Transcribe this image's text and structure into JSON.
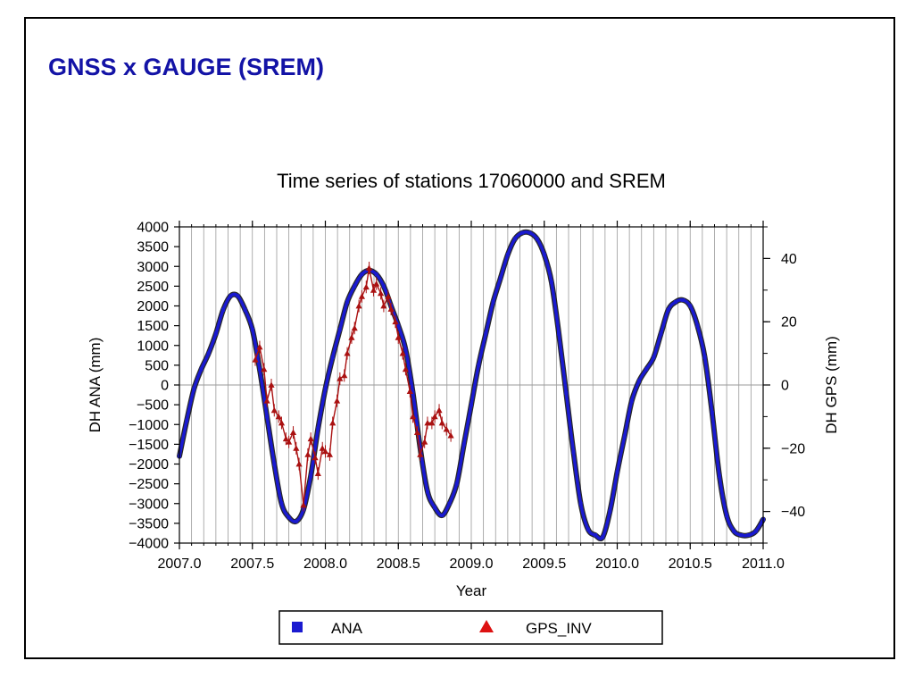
{
  "slide": {
    "title": "GNSS x GAUGE (SREM)"
  },
  "chart_data": {
    "type": "line",
    "title": "Time series of stations 17060000 and SREM",
    "xlabel": "Year",
    "ylabel_left": "DH ANA (mm)",
    "ylabel_right": "DH GPS (mm)",
    "xlim": [
      2007.0,
      2011.0
    ],
    "ylim_left": [
      -4000,
      4000
    ],
    "ylim_right": [
      -50,
      50
    ],
    "x_ticks": [
      "2007.0",
      "2007.5",
      "2008.0",
      "2008.5",
      "2009.0",
      "2009.5",
      "2010.0",
      "2010.5",
      "2011.0"
    ],
    "y_left_ticks": [
      "4000",
      "3500",
      "3000",
      "2500",
      "2000",
      "1500",
      "1000",
      "500",
      "0",
      "−500",
      "−1000",
      "−1500",
      "−2000",
      "−2500",
      "−3000",
      "−3500",
      "−4000"
    ],
    "y_right_ticks": [
      "40",
      "20",
      "0",
      "−20",
      "−40"
    ],
    "grid": {
      "vertical": true,
      "zero_line": true
    },
    "legend_position": "bottom",
    "series": [
      {
        "name": "ANA",
        "axis": "left",
        "color": "#1a1ad0",
        "marker": "square",
        "x": [
          2007.0,
          2007.05,
          2007.1,
          2007.15,
          2007.2,
          2007.25,
          2007.3,
          2007.35,
          2007.4,
          2007.45,
          2007.5,
          2007.55,
          2007.6,
          2007.65,
          2007.7,
          2007.75,
          2007.8,
          2007.85,
          2007.9,
          2007.95,
          2008.0,
          2008.05,
          2008.1,
          2008.15,
          2008.2,
          2008.25,
          2008.3,
          2008.35,
          2008.4,
          2008.45,
          2008.5,
          2008.55,
          2008.6,
          2008.65,
          2008.7,
          2008.75,
          2008.8,
          2008.85,
          2008.9,
          2008.95,
          2009.0,
          2009.05,
          2009.1,
          2009.15,
          2009.2,
          2009.25,
          2009.3,
          2009.35,
          2009.4,
          2009.45,
          2009.5,
          2009.55,
          2009.6,
          2009.65,
          2009.7,
          2009.75,
          2009.8,
          2009.85,
          2009.9,
          2009.95,
          2010.0,
          2010.05,
          2010.1,
          2010.15,
          2010.2,
          2010.25,
          2010.3,
          2010.35,
          2010.4,
          2010.45,
          2010.5,
          2010.55,
          2010.6,
          2010.65,
          2010.7,
          2010.75,
          2010.8,
          2010.85,
          2010.9,
          2010.95,
          2011.0
        ],
        "y": [
          -1800,
          -900,
          -100,
          400,
          800,
          1300,
          1900,
          2250,
          2250,
          1900,
          1400,
          400,
          -800,
          -2000,
          -3000,
          -3350,
          -3450,
          -3150,
          -2300,
          -1100,
          -100,
          700,
          1400,
          2100,
          2500,
          2800,
          2900,
          2800,
          2500,
          2000,
          1500,
          900,
          -200,
          -1600,
          -2700,
          -3100,
          -3300,
          -3000,
          -2500,
          -1500,
          -500,
          500,
          1300,
          2100,
          2700,
          3300,
          3700,
          3850,
          3850,
          3700,
          3300,
          2600,
          1300,
          -200,
          -1700,
          -3000,
          -3650,
          -3800,
          -3850,
          -3200,
          -2200,
          -1300,
          -400,
          100,
          400,
          700,
          1300,
          1900,
          2100,
          2150,
          2000,
          1500,
          700,
          -700,
          -2300,
          -3300,
          -3700,
          -3800,
          -3800,
          -3700,
          -3400
        ]
      },
      {
        "name": "GPS_INV",
        "axis": "right",
        "color": "#aa1111",
        "marker": "triangle",
        "x": [
          2007.52,
          2007.55,
          2007.58,
          2007.6,
          2007.63,
          2007.65,
          2007.68,
          2007.7,
          2007.73,
          2007.75,
          2007.78,
          2007.8,
          2007.82,
          2007.85,
          2007.88,
          2007.9,
          2007.93,
          2007.95,
          2007.98,
          2008.0,
          2008.03,
          2008.05,
          2008.08,
          2008.1,
          2008.13,
          2008.15,
          2008.18,
          2008.2,
          2008.23,
          2008.25,
          2008.28,
          2008.3,
          2008.33,
          2008.35,
          2008.38,
          2008.4,
          2008.43,
          2008.45,
          2008.48,
          2008.5,
          2008.53,
          2008.55,
          2008.58,
          2008.6,
          2008.63,
          2008.65,
          2008.68,
          2008.7,
          2008.73,
          2008.75,
          2008.78,
          2008.8,
          2008.83,
          2008.86
        ],
        "y": [
          8,
          12,
          5,
          -5,
          0,
          -8,
          -10,
          -12,
          -17,
          -18,
          -15,
          -20,
          -25,
          -38,
          -22,
          -17,
          -23,
          -28,
          -20,
          -21,
          -22,
          -12,
          -5,
          2,
          3,
          10,
          15,
          18,
          25,
          28,
          31,
          37,
          30,
          32,
          29,
          25,
          28,
          24,
          20,
          15,
          10,
          5,
          -2,
          -10,
          -15,
          -22,
          -18,
          -12,
          -12,
          -10,
          -8,
          -12,
          -14,
          -16
        ]
      }
    ]
  },
  "legend": {
    "items": [
      {
        "label": "ANA",
        "color": "#1a1ad0",
        "icon": "blue-square-icon"
      },
      {
        "label": "GPS_INV",
        "color": "#dd1111",
        "icon": "red-triangle-icon"
      }
    ]
  }
}
